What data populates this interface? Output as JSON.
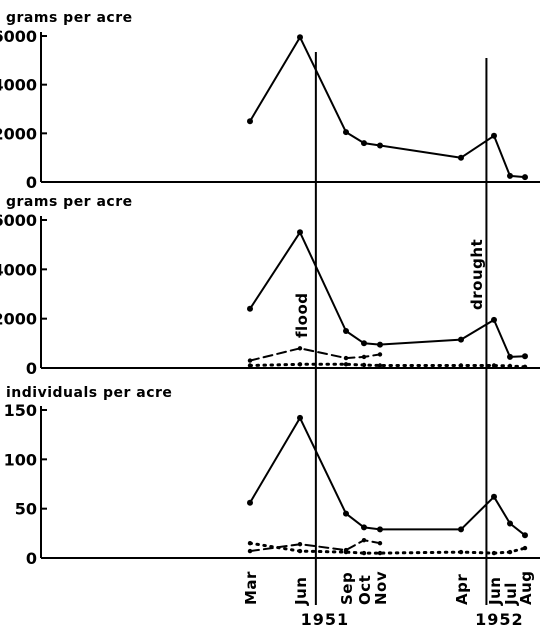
{
  "chart_data": [
    {
      "type": "line",
      "ylabel": "grams per acre",
      "ylim": [
        0,
        6000
      ],
      "yticks": [
        0,
        2000,
        4000,
        6000
      ],
      "series": [
        {
          "style": "solid",
          "points": [
            {
              "x": "1951-03-15",
              "y": 2500
            },
            {
              "x": "1951-06-15",
              "y": 5950
            },
            {
              "x": "1951-09-10",
              "y": 2050
            },
            {
              "x": "1951-10-05",
              "y": 1600
            },
            {
              "x": "1951-11-01",
              "y": 1500
            },
            {
              "x": "1952-04-15",
              "y": 1000
            },
            {
              "x": "1952-06-15",
              "y": 1900
            },
            {
              "x": "1952-07-15",
              "y": 250
            },
            {
              "x": "1952-08-15",
              "y": 200
            }
          ]
        }
      ]
    },
    {
      "type": "line",
      "ylabel": "grams per acre",
      "ylim": [
        0,
        6000
      ],
      "yticks": [
        0,
        2000,
        4000,
        6000
      ],
      "series": [
        {
          "style": "solid",
          "points": [
            {
              "x": "1951-03-15",
              "y": 2400
            },
            {
              "x": "1951-06-15",
              "y": 5500
            },
            {
              "x": "1951-09-10",
              "y": 1500
            },
            {
              "x": "1951-10-05",
              "y": 1000
            },
            {
              "x": "1951-11-01",
              "y": 950
            },
            {
              "x": "1952-04-15",
              "y": 1150
            },
            {
              "x": "1952-06-15",
              "y": 1950
            },
            {
              "x": "1952-07-15",
              "y": 450
            },
            {
              "x": "1952-08-15",
              "y": 480
            }
          ]
        },
        {
          "style": "dashed",
          "points": [
            {
              "x": "1951-03-15",
              "y": 300
            },
            {
              "x": "1951-06-15",
              "y": 800
            },
            {
              "x": "1951-09-10",
              "y": 400
            },
            {
              "x": "1951-10-05",
              "y": 450
            },
            {
              "x": "1951-11-01",
              "y": 550
            }
          ]
        },
        {
          "style": "dotted",
          "points": [
            {
              "x": "1951-03-15",
              "y": 100
            },
            {
              "x": "1951-06-15",
              "y": 150
            },
            {
              "x": "1951-09-10",
              "y": 150
            },
            {
              "x": "1951-10-05",
              "y": 120
            },
            {
              "x": "1951-11-01",
              "y": 100
            },
            {
              "x": "1952-04-15",
              "y": 100
            },
            {
              "x": "1952-06-15",
              "y": 100
            },
            {
              "x": "1952-07-15",
              "y": 80
            },
            {
              "x": "1952-08-15",
              "y": 50
            }
          ]
        }
      ]
    },
    {
      "type": "line",
      "ylabel": "individuals per acre",
      "ylim": [
        0,
        150
      ],
      "yticks": [
        0,
        50,
        100,
        150
      ],
      "series": [
        {
          "style": "solid",
          "points": [
            {
              "x": "1951-03-15",
              "y": 56
            },
            {
              "x": "1951-06-15",
              "y": 142
            },
            {
              "x": "1951-09-10",
              "y": 45
            },
            {
              "x": "1951-10-05",
              "y": 31
            },
            {
              "x": "1951-11-01",
              "y": 29
            },
            {
              "x": "1952-04-15",
              "y": 29
            },
            {
              "x": "1952-06-15",
              "y": 62
            },
            {
              "x": "1952-07-15",
              "y": 35
            },
            {
              "x": "1952-08-15",
              "y": 23
            }
          ]
        },
        {
          "style": "dashed",
          "points": [
            {
              "x": "1951-03-15",
              "y": 7
            },
            {
              "x": "1951-06-15",
              "y": 14
            },
            {
              "x": "1951-09-10",
              "y": 8
            },
            {
              "x": "1951-10-05",
              "y": 18
            },
            {
              "x": "1951-11-01",
              "y": 15
            }
          ]
        },
        {
          "style": "dotted",
          "points": [
            {
              "x": "1951-03-15",
              "y": 15
            },
            {
              "x": "1951-06-15",
              "y": 7
            },
            {
              "x": "1951-09-10",
              "y": 6
            },
            {
              "x": "1951-10-05",
              "y": 5
            },
            {
              "x": "1951-11-01",
              "y": 5
            },
            {
              "x": "1952-04-15",
              "y": 6
            },
            {
              "x": "1952-06-15",
              "y": 5
            },
            {
              "x": "1952-07-15",
              "y": 6
            },
            {
              "x": "1952-08-15",
              "y": 10
            }
          ]
        }
      ]
    }
  ],
  "x_axis": {
    "ticks": [
      {
        "x": "1951-03-15",
        "label": "Mar"
      },
      {
        "x": "1951-06-15",
        "label": "Jun"
      },
      {
        "x": "1951-09-10",
        "label": "Sep"
      },
      {
        "x": "1951-10-05",
        "label": "Oct"
      },
      {
        "x": "1951-11-01",
        "label": "Nov"
      },
      {
        "x": "1952-04-15",
        "label": "Apr"
      },
      {
        "x": "1952-06-15",
        "label": "Jun"
      },
      {
        "x": "1952-07-15",
        "label": "Jul"
      },
      {
        "x": "1952-08-15",
        "label": "Aug"
      }
    ],
    "years": [
      {
        "x": "1951-08-01",
        "label": "1951"
      },
      {
        "x": "1952-06-25",
        "label": "1952"
      }
    ]
  },
  "events": [
    {
      "x": "1951-07-15",
      "label": "flood"
    },
    {
      "x": "1952-06-01",
      "label": "drought"
    }
  ],
  "colors": {
    "ink": "#000000",
    "background": "#ffffff"
  }
}
